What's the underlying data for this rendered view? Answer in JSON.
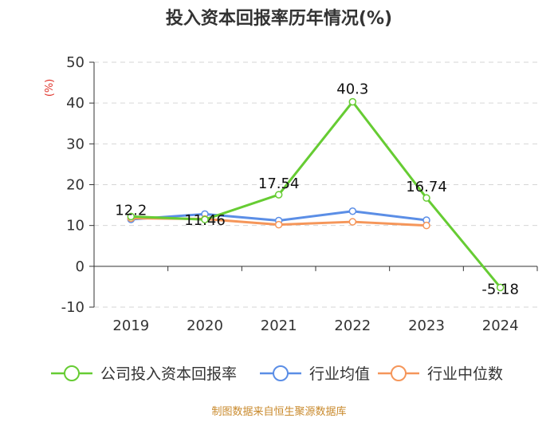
{
  "chart_data": {
    "type": "line",
    "title": "投入资本回报率历年情况(%)",
    "ylabel": "(%)",
    "xlabel": "",
    "categories": [
      "2019",
      "2020",
      "2021",
      "2022",
      "2023",
      "2024"
    ],
    "ylim": [
      -10,
      50
    ],
    "yticks": [
      -10,
      0,
      10,
      20,
      30,
      40,
      50
    ],
    "grid": true,
    "legend_position": "bottom",
    "series": [
      {
        "name": "公司投入资本回报率",
        "color": "#66cc33",
        "values": [
          12.2,
          11.46,
          17.54,
          40.3,
          16.74,
          -5.18
        ],
        "labels": [
          "12.2",
          "11.46",
          "17.54",
          "40.3",
          "16.74",
          "-5.18"
        ]
      },
      {
        "name": "行业均值",
        "color": "#5b8ee6",
        "values": [
          11.5,
          12.8,
          11.2,
          13.5,
          11.3,
          null
        ]
      },
      {
        "name": "行业中位数",
        "color": "#f5965a",
        "values": [
          11.8,
          11.6,
          10.2,
          10.9,
          10.0,
          null
        ]
      }
    ]
  },
  "footer": {
    "source": "制图数据来自恒生聚源数据库"
  }
}
